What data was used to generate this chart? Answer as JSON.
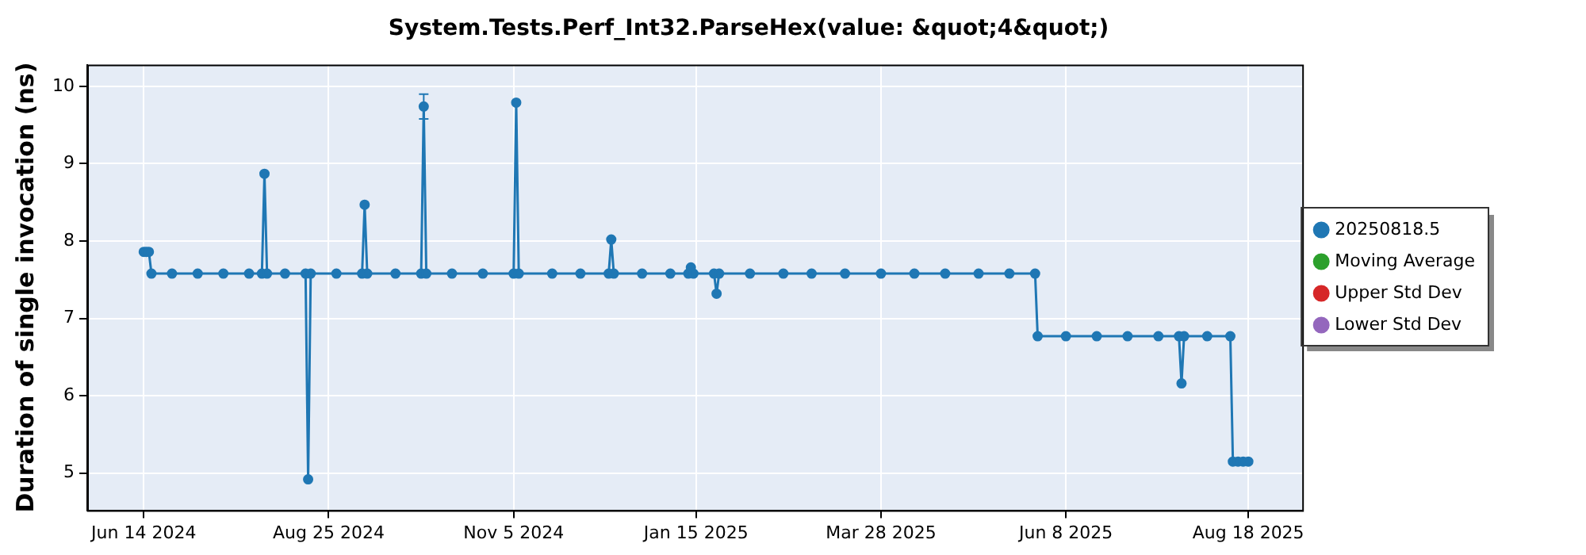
{
  "chart_data": {
    "type": "line",
    "title": "System.Tests.Perf_Int32.ParseHex(value: &quot;4&quot;)",
    "ylabel": "Duration of single invocation (ns)",
    "x": [
      "2024-06-14",
      "2024-06-15",
      "2024-06-16",
      "2024-06-17",
      "2024-06-25",
      "2024-07-05",
      "2024-07-15",
      "2024-07-25",
      "2024-07-30",
      "2024-07-31",
      "2024-08-01",
      "2024-08-08",
      "2024-08-16",
      "2024-08-17",
      "2024-08-18",
      "2024-08-28",
      "2024-09-07",
      "2024-09-08",
      "2024-09-09",
      "2024-09-20",
      "2024-09-30",
      "2024-10-01",
      "2024-10-02",
      "2024-10-12",
      "2024-10-24",
      "2024-11-05",
      "2024-11-06",
      "2024-11-07",
      "2024-11-20",
      "2024-12-01",
      "2024-12-12",
      "2024-12-13",
      "2024-12-14",
      "2024-12-25",
      "2025-01-05",
      "2025-01-12",
      "2025-01-13",
      "2025-01-14",
      "2025-01-22",
      "2025-01-23",
      "2025-01-24",
      "2025-02-05",
      "2025-02-18",
      "2025-03-01",
      "2025-03-14",
      "2025-03-28",
      "2025-04-10",
      "2025-04-22",
      "2025-05-05",
      "2025-05-17",
      "2025-05-27",
      "2025-05-28",
      "2025-06-08",
      "2025-06-20",
      "2025-07-02",
      "2025-07-14",
      "2025-07-22",
      "2025-07-23",
      "2025-07-24",
      "2025-08-02",
      "2025-08-11",
      "2025-08-12",
      "2025-08-14",
      "2025-08-16",
      "2025-08-18"
    ],
    "series": [
      {
        "name": "20250818.5",
        "color": "#1f77b4",
        "values": [
          7.86,
          7.86,
          7.86,
          7.58,
          7.58,
          7.58,
          7.58,
          7.58,
          7.58,
          8.87,
          7.58,
          7.58,
          7.58,
          4.92,
          7.58,
          7.58,
          7.58,
          8.47,
          7.58,
          7.58,
          7.58,
          9.74,
          7.58,
          7.58,
          7.58,
          7.58,
          9.79,
          7.58,
          7.58,
          7.58,
          7.58,
          8.02,
          7.58,
          7.58,
          7.58,
          7.58,
          7.66,
          7.58,
          7.58,
          7.32,
          7.58,
          7.58,
          7.58,
          7.58,
          7.58,
          7.58,
          7.58,
          7.58,
          7.58,
          7.58,
          7.58,
          6.77,
          6.77,
          6.77,
          6.77,
          6.77,
          6.77,
          6.16,
          6.77,
          6.77,
          6.77,
          5.15,
          5.15,
          5.15,
          5.15
        ],
        "errors": [
          null,
          null,
          null,
          null,
          null,
          null,
          null,
          null,
          null,
          null,
          null,
          null,
          null,
          null,
          null,
          null,
          null,
          null,
          null,
          null,
          null,
          [
            9.58,
            9.9
          ],
          null,
          null,
          null,
          null,
          null,
          null,
          null,
          null,
          null,
          null,
          null,
          null,
          null,
          null,
          null,
          null,
          null,
          null,
          null,
          null,
          null,
          null,
          null,
          null,
          null,
          null,
          null,
          null,
          null,
          null,
          null,
          null,
          null,
          null,
          null,
          null,
          null,
          null,
          null,
          null,
          null,
          null,
          null
        ]
      },
      {
        "name": "Moving Average",
        "color": "#2ca02c",
        "values": [
          null,
          null,
          null,
          null,
          null,
          null,
          null,
          null,
          null,
          null,
          null,
          null,
          null,
          null,
          null,
          null,
          null,
          null,
          null,
          null,
          null,
          null,
          null,
          null,
          null,
          null,
          null,
          null,
          null,
          null,
          null,
          null,
          null,
          null,
          null,
          null,
          null,
          null,
          null,
          null,
          null,
          null,
          null,
          null,
          null,
          null,
          null,
          null,
          null,
          null,
          null,
          null,
          null,
          null,
          null,
          null,
          null,
          null,
          null,
          null,
          null,
          null,
          null,
          null,
          null
        ]
      },
      {
        "name": "Upper Std Dev",
        "color": "#d62728",
        "values": [
          null,
          null,
          null,
          null,
          null,
          null,
          null,
          null,
          null,
          null,
          null,
          null,
          null,
          null,
          null,
          null,
          null,
          null,
          null,
          null,
          null,
          null,
          null,
          null,
          null,
          null,
          null,
          null,
          null,
          null,
          null,
          null,
          null,
          null,
          null,
          null,
          null,
          null,
          null,
          null,
          null,
          null,
          null,
          null,
          null,
          null,
          null,
          null,
          null,
          null,
          null,
          null,
          null,
          null,
          null,
          null,
          null,
          null,
          null,
          null,
          null,
          null,
          null,
          null,
          null
        ]
      },
      {
        "name": "Lower Std Dev",
        "color": "#9467bd",
        "values": [
          null,
          null,
          null,
          null,
          null,
          null,
          null,
          null,
          null,
          null,
          null,
          null,
          null,
          null,
          null,
          null,
          null,
          null,
          null,
          null,
          null,
          null,
          null,
          null,
          null,
          null,
          null,
          null,
          null,
          null,
          null,
          null,
          null,
          null,
          null,
          null,
          null,
          null,
          null,
          null,
          null,
          null,
          null,
          null,
          null,
          null,
          null,
          null,
          null,
          null,
          null,
          null,
          null,
          null,
          null,
          null,
          null,
          null,
          null,
          null,
          null,
          null,
          null,
          null,
          null
        ]
      }
    ],
    "xlim": [
      "2024-05-23",
      "2025-09-08"
    ],
    "xticks": [
      {
        "value": "2024-06-14",
        "label": "Jun 14 2024"
      },
      {
        "value": "2024-08-25",
        "label": "Aug 25 2024"
      },
      {
        "value": "2024-11-05",
        "label": "Nov 5 2024"
      },
      {
        "value": "2025-01-15",
        "label": "Jan 15 2025"
      },
      {
        "value": "2025-03-28",
        "label": "Mar 28 2025"
      },
      {
        "value": "2025-06-08",
        "label": "Jun 8 2025"
      },
      {
        "value": "2025-08-18",
        "label": "Aug 18 2025"
      }
    ],
    "ylim": [
      4.52,
      10.28
    ],
    "yticks": [
      5,
      6,
      7,
      8,
      9,
      10
    ],
    "grid": true,
    "legend": "right",
    "marker": "circle",
    "line_style": "solid"
  }
}
